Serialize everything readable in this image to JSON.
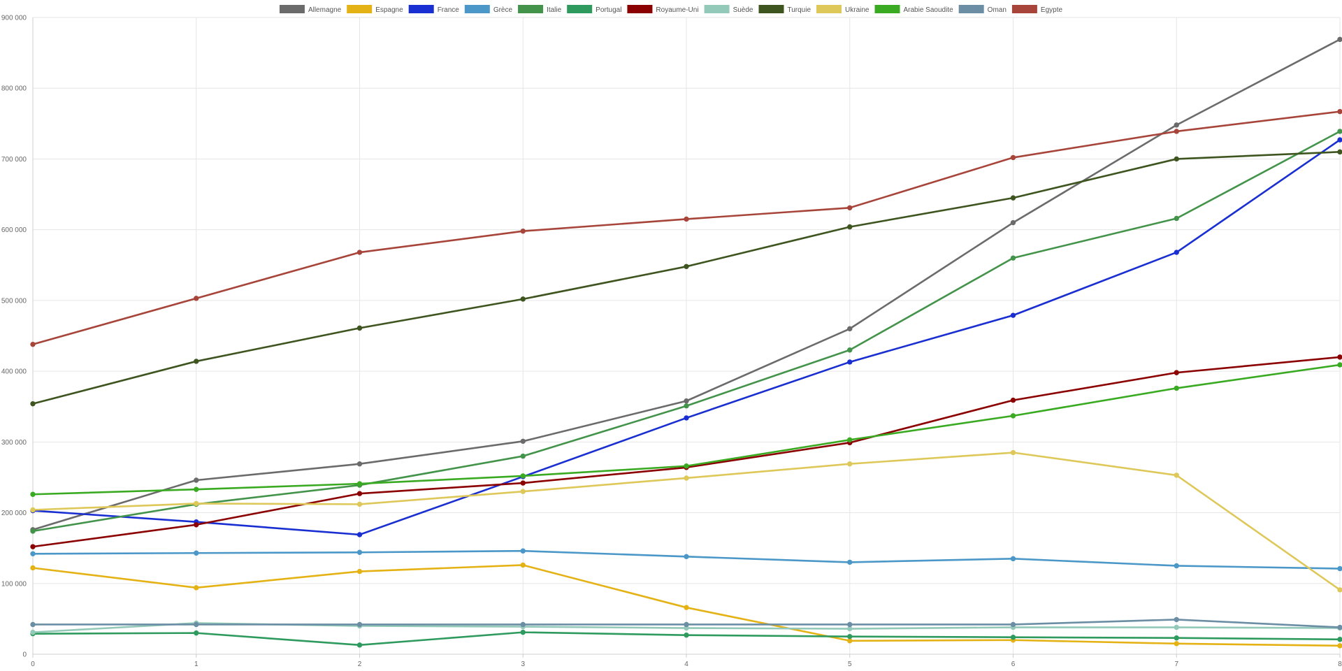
{
  "chart_data": {
    "type": "line",
    "x": [
      0,
      1,
      2,
      3,
      4,
      5,
      6,
      7,
      8
    ],
    "ylim": [
      0,
      900000
    ],
    "y_ticks": [
      0,
      100000,
      200000,
      300000,
      400000,
      500000,
      600000,
      700000,
      800000,
      900000
    ],
    "y_tick_labels": [
      "0",
      "100 000",
      "200 000",
      "300 000",
      "400 000",
      "500 000",
      "600 000",
      "700 000",
      "800 000",
      "900 000"
    ],
    "x_tick_labels": [
      "0",
      "1",
      "2",
      "3",
      "4",
      "5",
      "6",
      "7",
      "8"
    ],
    "grid": true,
    "legend_position": "top",
    "series": [
      {
        "name": "Allemagne",
        "color": "#6b6b6b",
        "values": [
          176000,
          246000,
          269000,
          301000,
          358000,
          460000,
          610000,
          748000,
          869000
        ]
      },
      {
        "name": "Espagne",
        "color": "#e5b216",
        "values": [
          122000,
          94000,
          117000,
          126000,
          66000,
          19000,
          20000,
          15000,
          12000
        ]
      },
      {
        "name": "France",
        "color": "#1a2fd1",
        "values": [
          203000,
          187000,
          169000,
          251000,
          334000,
          413000,
          479000,
          568000,
          727000
        ]
      },
      {
        "name": "Grèce",
        "color": "#4b97c8",
        "values": [
          142000,
          143000,
          144000,
          146000,
          138000,
          130000,
          135000,
          125000,
          121000
        ]
      },
      {
        "name": "Italie",
        "color": "#43944a",
        "values": [
          174000,
          212000,
          239000,
          280000,
          351000,
          430000,
          560000,
          616000,
          739000
        ]
      },
      {
        "name": "Portugal",
        "color": "#2f9a5e",
        "values": [
          29000,
          30000,
          13000,
          31000,
          27000,
          25000,
          24000,
          23000,
          21000
        ]
      },
      {
        "name": "Royaume-Uni",
        "color": "#8b0000",
        "values": [
          152000,
          183000,
          227000,
          242000,
          264000,
          299000,
          359000,
          398000,
          420000
        ]
      },
      {
        "name": "Suède",
        "color": "#93c9b8",
        "values": [
          31000,
          44000,
          40000,
          39000,
          37000,
          36000,
          38000,
          38000,
          37000
        ]
      },
      {
        "name": "Turquie",
        "color": "#3f5520",
        "values": [
          354000,
          414000,
          461000,
          502000,
          548000,
          604000,
          645000,
          700000,
          710000
        ]
      },
      {
        "name": "Ukraine",
        "color": "#dec85a",
        "values": [
          204000,
          213000,
          212000,
          230000,
          249000,
          269000,
          285000,
          253000,
          91000
        ]
      },
      {
        "name": "Arabie Saoudite",
        "color": "#3aaa22",
        "values": [
          226000,
          233000,
          241000,
          252000,
          266000,
          303000,
          337000,
          376000,
          409000
        ]
      },
      {
        "name": "Oman",
        "color": "#6b8ea5",
        "values": [
          42000,
          42000,
          42000,
          42000,
          42000,
          42000,
          42000,
          49000,
          38000
        ]
      },
      {
        "name": "Egypte",
        "color": "#a7453a",
        "values": [
          438000,
          503000,
          568000,
          598000,
          615000,
          631000,
          702000,
          739000,
          767000
        ]
      }
    ]
  }
}
